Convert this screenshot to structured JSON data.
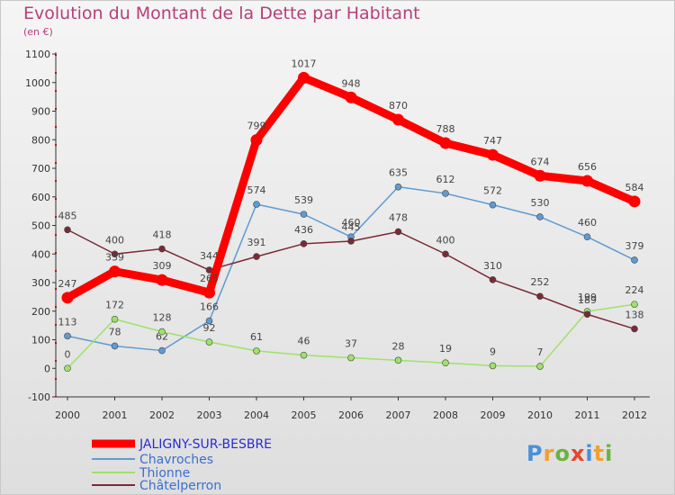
{
  "chart_data": {
    "type": "line",
    "title": "Evolution du Montant de la Dette par Habitant",
    "subtitle": "(en €)",
    "x": [
      "2000",
      "2001",
      "2002",
      "2003",
      "2004",
      "2005",
      "2006",
      "2007",
      "2008",
      "2009",
      "2010",
      "2011",
      "2012"
    ],
    "ylim": [
      -100,
      1100
    ],
    "yticks": [
      -100,
      0,
      100,
      200,
      300,
      400,
      500,
      600,
      700,
      800,
      900,
      1000,
      1100
    ],
    "grid": false,
    "legend_position": "bottom-left",
    "series": [
      {
        "name": "JALIGNY-SUR-BESBRE",
        "color": "#ff0000",
        "values": [
          247,
          339,
          309,
          265,
          799,
          1017,
          948,
          870,
          788,
          747,
          674,
          656,
          584
        ]
      },
      {
        "name": "Chavroches",
        "color": "#5f9bd1",
        "values": [
          113,
          78,
          62,
          166,
          574,
          539,
          460,
          635,
          612,
          572,
          530,
          460,
          379
        ]
      },
      {
        "name": "Thionne",
        "color": "#9ee26a",
        "values": [
          0,
          172,
          128,
          92,
          61,
          46,
          37,
          28,
          19,
          9,
          7,
          199,
          224
        ]
      },
      {
        "name": "Châtelperron",
        "color": "#7b2a35",
        "values": [
          485,
          400,
          418,
          344,
          391,
          436,
          445,
          478,
          400,
          310,
          252,
          189,
          138
        ]
      }
    ]
  },
  "logo": {
    "text": "Proxiti",
    "colors": [
      "#4a90d9",
      "#f0a030",
      "#6cb33e",
      "#e8452c",
      "#4a90d9",
      "#f0a030",
      "#6cb33e"
    ]
  }
}
